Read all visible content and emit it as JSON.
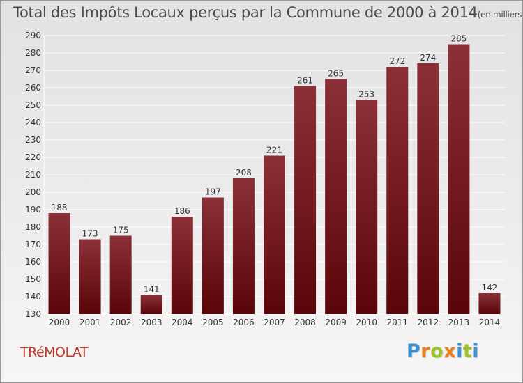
{
  "title": "Total des Impôts Locaux perçus par la Commune de 2000 à 2014",
  "title_unit": "(en milliers d'€)",
  "commune": "TRéMOLAT",
  "logo": {
    "text": "Proxiti",
    "letter_colors": [
      "#3a8fd0",
      "#e67e22",
      "#9cc42a",
      "#e67e22",
      "#3a8fd0",
      "#9cc42a",
      "#3a8fd0"
    ]
  },
  "colors": {
    "bar_top": "#8b3038",
    "bar_bottom": "#5a0509",
    "grid": "#ffffff"
  },
  "chart_data": {
    "type": "bar",
    "title": "Total des Impôts Locaux perçus par la Commune de 2000 à 2014",
    "xlabel": "",
    "ylabel": "",
    "categories": [
      "2000",
      "2001",
      "2002",
      "2003",
      "2004",
      "2005",
      "2006",
      "2007",
      "2008",
      "2009",
      "2010",
      "2011",
      "2012",
      "2013",
      "2014"
    ],
    "values": [
      188,
      173,
      175,
      141,
      186,
      197,
      208,
      221,
      261,
      265,
      253,
      272,
      274,
      285,
      142
    ],
    "ylim": [
      130,
      290
    ],
    "yticks": [
      130,
      140,
      150,
      160,
      170,
      180,
      190,
      200,
      210,
      220,
      230,
      240,
      250,
      260,
      270,
      280,
      290
    ],
    "grid": true,
    "data_labels": true
  }
}
